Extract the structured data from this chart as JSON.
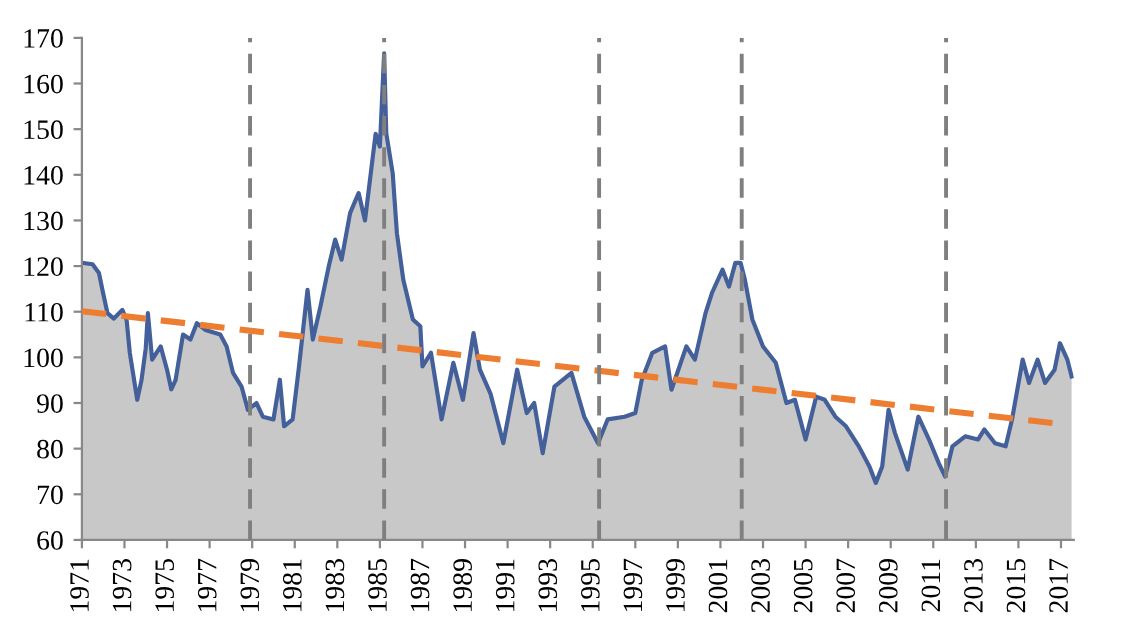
{
  "chart_data": {
    "type": "area",
    "x": [
      1971.0,
      1971.5,
      1971.8,
      1972.0,
      1972.2,
      1972.5,
      1972.9,
      1973.1,
      1973.25,
      1973.6,
      1973.8,
      1974.0,
      1974.1,
      1974.3,
      1974.7,
      1975.0,
      1975.2,
      1975.4,
      1975.75,
      1976.1,
      1976.4,
      1976.8,
      1977.5,
      1977.8,
      1978.1,
      1978.5,
      1978.8,
      1979.2,
      1979.5,
      1980.0,
      1980.3,
      1980.5,
      1980.9,
      1981.2,
      1981.6,
      1981.85,
      1982.2,
      1982.6,
      1982.9,
      1983.2,
      1983.6,
      1984.0,
      1984.3,
      1984.8,
      1985.0,
      1985.2,
      1985.3,
      1985.6,
      1985.8,
      1986.1,
      1986.55,
      1986.9,
      1987.0,
      1987.4,
      1987.9,
      1988.45,
      1988.9,
      1989.4,
      1989.7,
      1990.2,
      1990.8,
      1991.45,
      1991.9,
      1992.25,
      1992.65,
      1993.2,
      1994.0,
      1994.6,
      1995.25,
      1995.7,
      1996.5,
      1997.0,
      1997.3,
      1997.8,
      1998.4,
      1998.7,
      1999.4,
      1999.8,
      2000.3,
      2000.6,
      2001.1,
      2001.4,
      2001.7,
      2001.95,
      2002.15,
      2002.5,
      2003.0,
      2003.6,
      2004.1,
      2004.5,
      2005.0,
      2005.5,
      2005.9,
      2006.4,
      2006.9,
      2007.5,
      2008.0,
      2008.3,
      2008.6,
      2008.9,
      2009.2,
      2009.8,
      2010.3,
      2010.8,
      2011.25,
      2011.56,
      2011.9,
      2012.5,
      2013.1,
      2013.4,
      2013.9,
      2014.4,
      2014.7,
      2015.2,
      2015.5,
      2015.9,
      2016.25,
      2016.7,
      2016.95,
      2017.3,
      2017.5
    ],
    "series": [
      {
        "color": "#44609a",
        "values": [
          120.7,
          120.4,
          118.5,
          114,
          109.7,
          108.5,
          110.4,
          108.2,
          101,
          90.7,
          95,
          102,
          109.7,
          99.5,
          102.4,
          97.3,
          93,
          95,
          105,
          103.9,
          107.5,
          106,
          105,
          102.4,
          96.6,
          93.6,
          88.5,
          90,
          87,
          86.4,
          95.1,
          84.9,
          86.4,
          98,
          114.8,
          103.9,
          111,
          120,
          125.8,
          121.4,
          131.6,
          136,
          130,
          149,
          146.2,
          166.6,
          149.1,
          140.4,
          127.2,
          117,
          108.3,
          106.8,
          98,
          101,
          86.4,
          98.8,
          90.7,
          105.3,
          97.3,
          92,
          81.2,
          97.3,
          87.8,
          90,
          79,
          93.6,
          96.6,
          87,
          81.2,
          86.4,
          87,
          87.8,
          95,
          101,
          102.4,
          92.9,
          102.4,
          99.5,
          109.7,
          114.1,
          119.2,
          115.5,
          120.7,
          120.7,
          117,
          108.3,
          102.4,
          98.8,
          90,
          90.7,
          82,
          91.4,
          90.7,
          87,
          84.9,
          80.5,
          76.1,
          72.5,
          76.1,
          88.5,
          83.4,
          75.4,
          87,
          82,
          76.9,
          73.9,
          80.5,
          82.7,
          82,
          84.2,
          81.2,
          80.5,
          86.4,
          99.5,
          94.4,
          99.5,
          94.4,
          97.3,
          103.1,
          99.5,
          95.8
        ]
      },
      {
        "type": "line",
        "color": "#ed7d31",
        "line_style": "dashed",
        "x": [
          1971.0,
          2016.6
        ],
        "values": [
          110.1,
          85.6
        ]
      }
    ],
    "ref_lines": [
      {
        "axis": "x",
        "value": 1978.9,
        "color": "#7f7f7f",
        "line_style": "dashed"
      },
      {
        "axis": "x",
        "value": 1985.2,
        "color": "#7f7f7f",
        "line_style": "dashed"
      },
      {
        "axis": "x",
        "value": 1995.3,
        "color": "#7f7f7f",
        "line_style": "dashed"
      },
      {
        "axis": "x",
        "value": 2002.0,
        "color": "#7f7f7f",
        "line_style": "dashed"
      },
      {
        "axis": "x",
        "value": 2011.6,
        "color": "#7f7f7f",
        "line_style": "dashed"
      }
    ],
    "xlim": [
      1971,
      2017.6
    ],
    "xticks": [
      1971,
      1973,
      1975,
      1977,
      1979,
      1981,
      1983,
      1985,
      1987,
      1989,
      1991,
      1993,
      1995,
      1997,
      1999,
      2001,
      2003,
      2005,
      2007,
      2009,
      2011,
      2013,
      2015,
      2017
    ],
    "ylim": [
      60,
      170
    ],
    "yticks": [
      60,
      70,
      80,
      90,
      100,
      110,
      120,
      130,
      140,
      150,
      160,
      170
    ],
    "grid": false,
    "marker": "none"
  }
}
